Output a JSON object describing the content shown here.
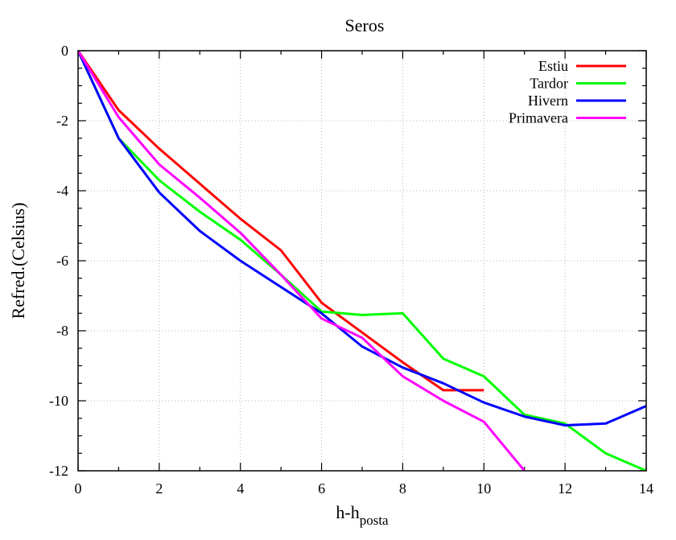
{
  "chart_data": {
    "type": "line",
    "title": "Seros",
    "xlabel": "h-h",
    "xlabel_sub": "posta",
    "ylabel": "Refred.(Celsius)",
    "xlim": [
      0,
      14
    ],
    "ylim": [
      -12,
      0
    ],
    "xticks": [
      0,
      2,
      4,
      6,
      8,
      10,
      12,
      14
    ],
    "yticks": [
      0,
      -2,
      -4,
      -6,
      -8,
      -10,
      -12
    ],
    "xtick_labels": [
      "0",
      "2",
      "4",
      "6",
      "8",
      "10",
      "12",
      "14"
    ],
    "ytick_labels": [
      "0",
      "-2",
      "-4",
      "-6",
      "-8",
      "-10",
      "-12"
    ],
    "grid": true,
    "legend_position": "top-right",
    "series": [
      {
        "name": "Estiu",
        "color": "#ff0000",
        "x": [
          0,
          1,
          2,
          3,
          4,
          5,
          6,
          7,
          8,
          9,
          10
        ],
        "y": [
          0,
          -1.7,
          -2.8,
          -3.8,
          -4.8,
          -5.7,
          -7.2,
          -8.05,
          -8.9,
          -9.7,
          -9.7
        ]
      },
      {
        "name": "Tardor",
        "color": "#00ff00",
        "x": [
          0,
          1,
          2,
          3,
          4,
          5,
          6,
          7,
          8,
          9,
          10,
          11,
          12,
          13,
          14
        ],
        "y": [
          0,
          -2.5,
          -3.7,
          -4.6,
          -5.4,
          -6.4,
          -7.45,
          -7.55,
          -7.5,
          -8.8,
          -9.3,
          -10.4,
          -10.65,
          -11.5,
          -12
        ]
      },
      {
        "name": "Hivern",
        "color": "#0000ff",
        "x": [
          0,
          1,
          2,
          3,
          4,
          5,
          6,
          7,
          8,
          9,
          10,
          11,
          12,
          13,
          14
        ],
        "y": [
          0,
          -2.5,
          -4.05,
          -5.15,
          -6.0,
          -6.75,
          -7.5,
          -8.45,
          -9.05,
          -9.5,
          -10.05,
          -10.45,
          -10.7,
          -10.65,
          -10.15
        ]
      },
      {
        "name": "Primavera",
        "color": "#ff00ff",
        "x": [
          0,
          1,
          2,
          3,
          4,
          5,
          6,
          7,
          8,
          9,
          10,
          11
        ],
        "y": [
          0,
          -1.9,
          -3.25,
          -4.2,
          -5.2,
          -6.4,
          -7.65,
          -8.2,
          -9.3,
          -10.0,
          -10.6,
          -12.0
        ]
      }
    ]
  }
}
